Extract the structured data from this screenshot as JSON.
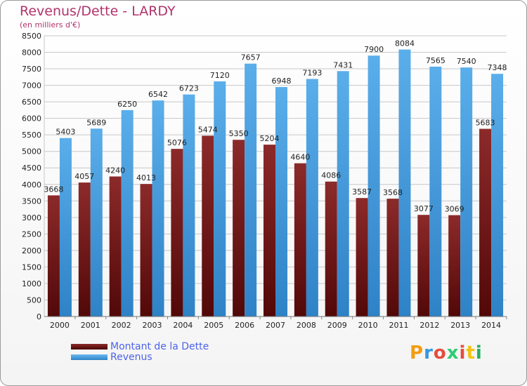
{
  "header": {
    "title": "Revenus/Dette - LARDY",
    "subtitle": "(en milliers d'€)"
  },
  "logo": {
    "letters": [
      "P",
      "r",
      "o",
      "x",
      "i",
      "t",
      "i"
    ],
    "colors": [
      "#f39c12",
      "#3498db",
      "#e74c3c",
      "#2ecc71",
      "#e74c3c",
      "#f1c40f",
      "#27ae60"
    ]
  },
  "colors": {
    "dette": "#7a1f1f",
    "revenus": "#4a9fe0",
    "grid": "#c8c8c8",
    "tick_text": "#222222"
  },
  "chart_data": {
    "type": "bar",
    "title": "Revenus/Dette - LARDY",
    "subtitle": "(en milliers d'€)",
    "categories": [
      "2000",
      "2001",
      "2002",
      "2003",
      "2004",
      "2005",
      "2006",
      "2007",
      "2008",
      "2009",
      "2010",
      "2011",
      "2012",
      "2013",
      "2014"
    ],
    "series": [
      {
        "name": "Montant de la Dette",
        "values": [
          3668,
          4057,
          4240,
          4013,
          5076,
          5474,
          5350,
          5204,
          4640,
          4086,
          3587,
          3568,
          3077,
          3069,
          5683
        ],
        "labels": [
          "3668",
          "4057",
          "4240",
          "4013",
          "5076",
          "5474",
          "5350",
          "5204",
          "4640",
          "4086",
          "3587",
          "3568",
          "3077",
          "3069",
          "5683"
        ]
      },
      {
        "name": "Revenus",
        "values": [
          5403,
          5689,
          6250,
          6542,
          6723,
          7120,
          7657,
          6948,
          7193,
          7431,
          7900,
          8084,
          7565,
          7540,
          7348
        ],
        "labels": [
          "5403",
          "5689",
          "6250",
          "6542",
          "6723",
          "7120",
          "7657",
          "6948",
          "7193",
          "7431",
          "7900",
          "8084",
          "7565",
          "7540",
          "7348"
        ]
      }
    ],
    "ylim": [
      0,
      8500
    ],
    "ytick_step": 500,
    "grid": true,
    "legend_position": "bottom-left"
  }
}
